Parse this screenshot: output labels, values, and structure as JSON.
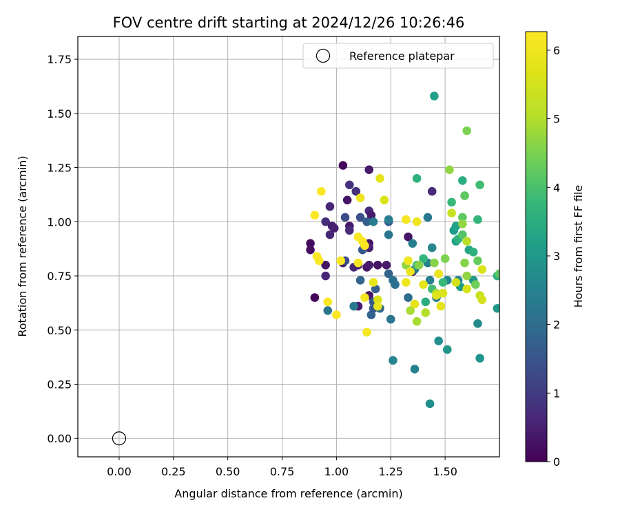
{
  "chart_data": {
    "type": "scatter",
    "title": "FOV centre drift starting at 2024/12/26 10:26:46",
    "xlabel": "Angular distance from reference (arcmin)",
    "ylabel": "Rotation from reference (arcmin)",
    "xlim": [
      -0.19,
      1.75
    ],
    "ylim": [
      -0.085,
      1.855
    ],
    "x_ticks": [
      "0.00",
      "0.25",
      "0.50",
      "0.75",
      "1.00",
      "1.25",
      "1.50"
    ],
    "y_ticks": [
      "0.00",
      "0.25",
      "0.50",
      "0.75",
      "1.00",
      "1.25",
      "1.50",
      "1.75"
    ],
    "grid": true,
    "legend": {
      "placement": "top-right",
      "entries": [
        "Reference platepar"
      ]
    },
    "colorbar": {
      "label": "Hours from first FF file",
      "colormap": "viridis",
      "range": [
        0,
        6.27
      ],
      "ticks": [
        "0",
        "1",
        "2",
        "3",
        "4",
        "5",
        "6"
      ]
    },
    "reference_point": {
      "x": 0.0,
      "y": 0.0
    },
    "series": [
      {
        "points": [
          [
            1.03,
            1.26,
            0.1
          ],
          [
            0.88,
            0.9,
            0.2
          ],
          [
            0.88,
            0.87,
            0.2
          ],
          [
            0.9,
            0.65,
            0.1
          ],
          [
            0.95,
            0.8,
            0.3
          ],
          [
            0.95,
            0.75,
            0.6
          ],
          [
            0.95,
            1.0,
            0.7
          ],
          [
            0.97,
            1.07,
            0.6
          ],
          [
            0.98,
            0.98,
            0.5
          ],
          [
            0.97,
            0.94,
            0.6
          ],
          [
            0.99,
            0.97,
            0.5
          ],
          [
            1.03,
            0.81,
            0.5
          ],
          [
            1.05,
            1.1,
            0.3
          ],
          [
            1.06,
            1.17,
            0.8
          ],
          [
            1.06,
            0.98,
            0.4
          ],
          [
            1.06,
            0.96,
            0.7
          ],
          [
            1.08,
            0.79,
            0.6
          ],
          [
            1.09,
            1.14,
            0.8
          ],
          [
            1.1,
            0.8,
            0.5
          ],
          [
            1.1,
            0.61,
            0.4
          ],
          [
            1.14,
            0.79,
            0.3
          ],
          [
            1.15,
            0.8,
            0.4
          ],
          [
            1.15,
            0.9,
            0.3
          ],
          [
            1.15,
            1.24,
            0.4
          ],
          [
            1.15,
            1.05,
            0.7
          ],
          [
            1.16,
            1.03,
            0.4
          ],
          [
            1.15,
            0.88,
            0.5
          ],
          [
            1.15,
            0.66,
            0.3
          ],
          [
            1.19,
            0.8,
            0.3
          ],
          [
            1.23,
            0.8,
            0.4
          ],
          [
            1.33,
            0.93,
            0.3
          ],
          [
            1.35,
            0.77,
            0.2
          ],
          [
            1.44,
            1.14,
            0.7
          ],
          [
            1.04,
            0.82,
            1.3
          ],
          [
            1.04,
            1.02,
            1.3
          ],
          [
            1.11,
            1.02,
            1.4
          ],
          [
            1.11,
            0.73,
            1.8
          ],
          [
            1.12,
            0.87,
            1.6
          ],
          [
            1.14,
            1.0,
            1.7
          ],
          [
            1.16,
            0.57,
            1.8
          ],
          [
            1.17,
            0.63,
            1.6
          ],
          [
            1.17,
            0.6,
            1.6
          ],
          [
            1.18,
            0.69,
            1.7
          ],
          [
            1.2,
            0.6,
            1.9
          ],
          [
            1.24,
            1.0,
            1.6
          ],
          [
            1.24,
            0.94,
            2.2
          ],
          [
            1.24,
            0.76,
            1.8
          ],
          [
            1.25,
            0.55,
            2.2
          ],
          [
            1.26,
            0.73,
            2.1
          ],
          [
            1.27,
            0.71,
            2.1
          ],
          [
            0.96,
            0.59,
            2.2
          ],
          [
            1.08,
            0.61,
            2.3
          ],
          [
            1.17,
            1.0,
            2.4
          ],
          [
            1.24,
            1.01,
            2.4
          ],
          [
            1.26,
            0.36,
            2.6
          ],
          [
            1.36,
            0.32,
            2.5
          ],
          [
            1.33,
            0.65,
            2.0
          ],
          [
            1.35,
            0.9,
            2.4
          ],
          [
            1.36,
            0.78,
            2.2
          ],
          [
            1.42,
            1.02,
            2.3
          ],
          [
            1.42,
            0.81,
            2.5
          ],
          [
            1.43,
            0.16,
            2.8
          ],
          [
            1.43,
            0.73,
            2.4
          ],
          [
            1.44,
            0.88,
            2.6
          ],
          [
            1.46,
            0.65,
            2.4
          ],
          [
            1.47,
            0.45,
            2.8
          ],
          [
            1.45,
            1.58,
            3.2
          ],
          [
            1.51,
            0.41,
            3.0
          ],
          [
            1.51,
            0.73,
            2.6
          ],
          [
            1.56,
            0.73,
            2.6
          ],
          [
            1.54,
            0.96,
            3.1
          ],
          [
            1.55,
            0.98,
            3.2
          ],
          [
            1.55,
            0.91,
            3.2
          ],
          [
            1.58,
            1.19,
            3.5
          ],
          [
            1.57,
            0.7,
            3.1
          ],
          [
            1.61,
            0.87,
            3.3
          ],
          [
            1.63,
            0.73,
            3.0
          ],
          [
            1.65,
            0.53,
            2.7
          ],
          [
            1.66,
            0.37,
            2.9
          ],
          [
            1.65,
            1.01,
            3.7
          ],
          [
            1.66,
            1.17,
            3.9
          ],
          [
            1.74,
            0.6,
            3.0
          ],
          [
            1.74,
            0.75,
            3.6
          ],
          [
            1.75,
            0.76,
            4.2
          ],
          [
            1.37,
            1.2,
            3.6
          ],
          [
            1.4,
            0.83,
            3.7
          ],
          [
            1.37,
            0.8,
            3.9
          ],
          [
            1.41,
            0.63,
            3.5
          ],
          [
            1.44,
            0.69,
            3.9
          ],
          [
            1.49,
            0.72,
            3.8
          ],
          [
            1.53,
            1.09,
            3.8
          ],
          [
            1.56,
            0.92,
            3.6
          ],
          [
            1.58,
            0.94,
            4.1
          ],
          [
            1.58,
            1.02,
            4.2
          ],
          [
            1.59,
            1.12,
            4.2
          ],
          [
            1.6,
            1.42,
            4.5
          ],
          [
            1.6,
            0.75,
            4.7
          ],
          [
            1.63,
            0.86,
            3.6
          ],
          [
            1.64,
            0.71,
            4.4
          ],
          [
            1.65,
            0.82,
            4.3
          ],
          [
            1.52,
            1.24,
            4.7
          ],
          [
            1.58,
            0.99,
            4.7
          ],
          [
            1.59,
            0.81,
            4.6
          ],
          [
            1.5,
            0.83,
            4.5
          ],
          [
            1.45,
            0.81,
            4.6
          ],
          [
            1.38,
            0.8,
            4.6
          ],
          [
            1.32,
            0.8,
            4.7
          ],
          [
            1.34,
            0.59,
            4.9
          ],
          [
            1.37,
            0.54,
            4.9
          ],
          [
            1.41,
            0.58,
            5.0
          ],
          [
            1.46,
            0.67,
            5.0
          ],
          [
            1.6,
            0.91,
            5.1
          ],
          [
            1.53,
            1.04,
            5.3
          ],
          [
            1.66,
            0.66,
            5.3
          ],
          [
            1.67,
            0.64,
            5.5
          ],
          [
            1.67,
            0.78,
            5.6
          ],
          [
            1.6,
            0.69,
            5.6
          ],
          [
            1.55,
            0.72,
            5.5
          ],
          [
            1.49,
            0.67,
            5.6
          ],
          [
            1.48,
            0.61,
            5.8
          ],
          [
            1.46,
            0.66,
            5.7
          ],
          [
            1.47,
            0.76,
            5.9
          ],
          [
            1.4,
            0.71,
            5.8
          ],
          [
            1.36,
            0.62,
            5.8
          ],
          [
            1.32,
            0.72,
            6.0
          ],
          [
            1.34,
            0.77,
            5.9
          ],
          [
            1.33,
            0.82,
            6.0
          ],
          [
            1.32,
            1.01,
            6.1
          ],
          [
            1.37,
            1.0,
            6.0
          ],
          [
            1.22,
            1.1,
            5.6
          ],
          [
            1.2,
            1.2,
            5.8
          ],
          [
            1.19,
            0.64,
            5.6
          ],
          [
            1.19,
            0.61,
            5.9
          ],
          [
            1.17,
            0.72,
            5.9
          ],
          [
            1.14,
            0.49,
            6.1
          ],
          [
            1.13,
            0.65,
            6.1
          ],
          [
            1.13,
            0.89,
            6.2
          ],
          [
            1.12,
            0.91,
            6.2
          ],
          [
            1.11,
            1.11,
            6.0
          ],
          [
            1.1,
            0.81,
            6.1
          ],
          [
            1.1,
            0.93,
            6.2
          ],
          [
            1.02,
            0.82,
            6.2
          ],
          [
            0.96,
            0.63,
            6.2
          ],
          [
            1.0,
            0.57,
            6.2
          ],
          [
            0.91,
            0.84,
            6.2
          ],
          [
            0.92,
            0.82,
            6.2
          ],
          [
            0.9,
            1.03,
            6.2
          ],
          [
            0.93,
            1.14,
            6.2
          ]
        ]
      }
    ]
  }
}
